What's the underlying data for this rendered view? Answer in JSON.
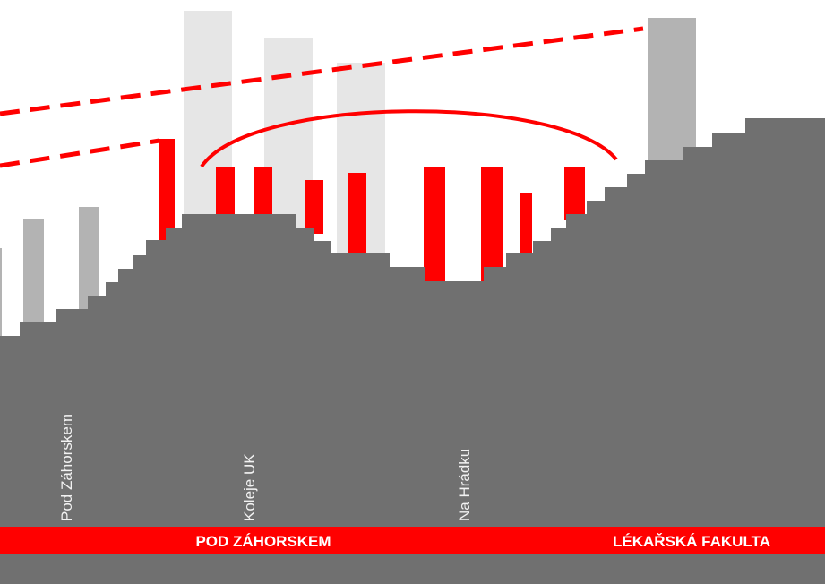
{
  "labels": {
    "stops": [
      "Pod Záhorskem",
      "Koleje UK",
      "Na Hrádku"
    ]
  },
  "band": {
    "left": "POD ZÁHORSKEM",
    "right": "LÉKAŘSKÁ FAKULTA"
  }
}
